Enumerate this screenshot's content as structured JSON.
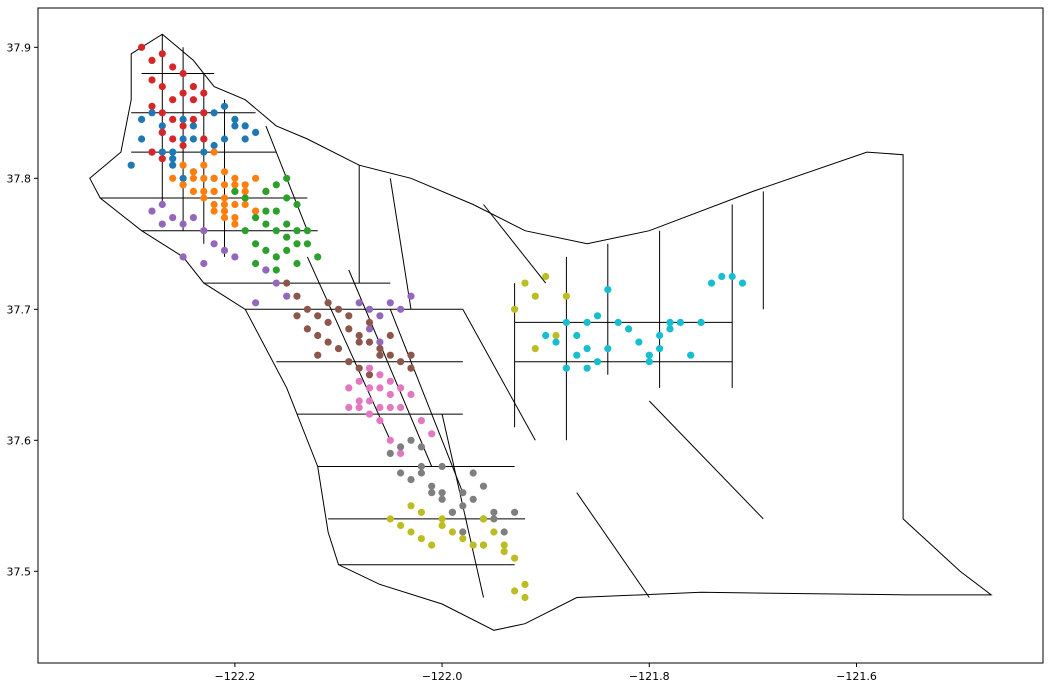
{
  "chart_data": {
    "type": "scatter",
    "title": "",
    "xlabel": "",
    "ylabel": "",
    "xlim": [
      -122.39,
      -121.42
    ],
    "ylim": [
      37.43,
      37.93
    ],
    "grid": false,
    "x_ticks": [
      {
        "value": -122.2,
        "label": "−122.2"
      },
      {
        "value": -122.0,
        "label": "−122.0"
      },
      {
        "value": -121.8,
        "label": "−121.8"
      },
      {
        "value": -121.6,
        "label": "−121.6"
      }
    ],
    "y_ticks": [
      {
        "value": 37.5,
        "label": "37.5"
      },
      {
        "value": 37.6,
        "label": "37.6"
      },
      {
        "value": 37.7,
        "label": "37.7"
      },
      {
        "value": 37.8,
        "label": "37.8"
      },
      {
        "value": 37.9,
        "label": "37.9"
      }
    ],
    "county_outline": [
      [
        -122.3,
        37.895
      ],
      [
        -122.27,
        37.91
      ],
      [
        -122.24,
        37.89
      ],
      [
        -122.22,
        37.87
      ],
      [
        -122.19,
        37.86
      ],
      [
        -122.16,
        37.84
      ],
      [
        -122.13,
        37.83
      ],
      [
        -122.08,
        37.81
      ],
      [
        -122.03,
        37.8
      ],
      [
        -121.97,
        37.78
      ],
      [
        -121.92,
        37.76
      ],
      [
        -121.86,
        37.75
      ],
      [
        -121.8,
        37.76
      ],
      [
        -121.7,
        37.79
      ],
      [
        -121.59,
        37.82
      ],
      [
        -121.555,
        37.818
      ],
      [
        -121.555,
        37.54
      ],
      [
        -121.5,
        37.5
      ],
      [
        -121.47,
        37.482
      ],
      [
        -121.55,
        37.482
      ],
      [
        -121.75,
        37.484
      ],
      [
        -121.87,
        37.48
      ],
      [
        -121.92,
        37.46
      ],
      [
        -121.95,
        37.455
      ],
      [
        -122.0,
        37.475
      ],
      [
        -122.06,
        37.49
      ],
      [
        -122.1,
        37.505
      ],
      [
        -122.11,
        37.53
      ],
      [
        -122.12,
        37.58
      ],
      [
        -122.15,
        37.64
      ],
      [
        -122.19,
        37.7
      ],
      [
        -122.23,
        37.72
      ],
      [
        -122.25,
        37.74
      ],
      [
        -122.29,
        37.76
      ],
      [
        -122.33,
        37.785
      ],
      [
        -122.34,
        37.8
      ],
      [
        -122.31,
        37.82
      ],
      [
        -122.3,
        37.86
      ],
      [
        -122.3,
        37.895
      ]
    ],
    "tract_boundaries": [
      [
        [
          -122.3,
          37.82
        ],
        [
          -122.16,
          37.82
        ]
      ],
      [
        [
          -122.3,
          37.85
        ],
        [
          -122.18,
          37.85
        ]
      ],
      [
        [
          -122.29,
          37.88
        ],
        [
          -122.22,
          37.88
        ]
      ],
      [
        [
          -122.27,
          37.91
        ],
        [
          -122.27,
          37.78
        ]
      ],
      [
        [
          -122.25,
          37.9
        ],
        [
          -122.25,
          37.76
        ]
      ],
      [
        [
          -122.23,
          37.88
        ],
        [
          -122.23,
          37.75
        ]
      ],
      [
        [
          -122.21,
          37.86
        ],
        [
          -122.21,
          37.74
        ]
      ],
      [
        [
          -122.33,
          37.785
        ],
        [
          -122.13,
          37.785
        ]
      ],
      [
        [
          -122.29,
          37.76
        ],
        [
          -122.12,
          37.76
        ]
      ],
      [
        [
          -122.23,
          37.72
        ],
        [
          -122.05,
          37.72
        ]
      ],
      [
        [
          -122.19,
          37.7
        ],
        [
          -121.98,
          37.7
        ]
      ],
      [
        [
          -122.16,
          37.66
        ],
        [
          -121.98,
          37.66
        ]
      ],
      [
        [
          -122.14,
          37.62
        ],
        [
          -121.98,
          37.62
        ]
      ],
      [
        [
          -122.12,
          37.58
        ],
        [
          -121.93,
          37.58
        ]
      ],
      [
        [
          -122.11,
          37.54
        ],
        [
          -121.92,
          37.54
        ]
      ],
      [
        [
          -122.1,
          37.505
        ],
        [
          -121.93,
          37.505
        ]
      ],
      [
        [
          -122.13,
          37.74
        ],
        [
          -122.05,
          37.6
        ]
      ],
      [
        [
          -122.09,
          37.73
        ],
        [
          -122.01,
          37.58
        ]
      ],
      [
        [
          -122.05,
          37.7
        ],
        [
          -121.98,
          37.56
        ]
      ],
      [
        [
          -122.0,
          37.62
        ],
        [
          -121.96,
          37.48
        ]
      ],
      [
        [
          -121.98,
          37.7
        ],
        [
          -121.91,
          37.6
        ]
      ],
      [
        [
          -121.93,
          37.72
        ],
        [
          -121.93,
          37.61
        ]
      ],
      [
        [
          -121.93,
          37.66
        ],
        [
          -121.72,
          37.66
        ]
      ],
      [
        [
          -121.93,
          37.69
        ],
        [
          -121.72,
          37.69
        ]
      ],
      [
        [
          -121.72,
          37.78
        ],
        [
          -121.72,
          37.64
        ]
      ],
      [
        [
          -121.84,
          37.75
        ],
        [
          -121.84,
          37.65
        ]
      ],
      [
        [
          -121.79,
          37.76
        ],
        [
          -121.79,
          37.64
        ]
      ],
      [
        [
          -121.88,
          37.74
        ],
        [
          -121.88,
          37.6
        ]
      ],
      [
        [
          -121.69,
          37.79
        ],
        [
          -121.69,
          37.7
        ]
      ],
      [
        [
          -121.8,
          37.63
        ],
        [
          -121.69,
          37.54
        ]
      ],
      [
        [
          -121.87,
          37.56
        ],
        [
          -121.8,
          37.48
        ]
      ],
      [
        [
          -121.96,
          37.78
        ],
        [
          -121.9,
          37.72
        ]
      ],
      [
        [
          -122.05,
          37.8
        ],
        [
          -122.03,
          37.7
        ]
      ],
      [
        [
          -122.08,
          37.81
        ],
        [
          -122.08,
          37.72
        ]
      ],
      [
        [
          -122.17,
          37.84
        ],
        [
          -122.13,
          37.76
        ]
      ]
    ],
    "series": [
      {
        "color": "#1f77b4",
        "x": [
          -122.3,
          -122.29,
          -122.28,
          -122.27,
          -122.26,
          -122.25,
          -122.24,
          -122.23,
          -122.22,
          -122.21,
          -122.2,
          -122.19,
          -122.18,
          -122.27,
          -122.25,
          -122.23,
          -122.26,
          -122.24,
          -122.28,
          -122.22,
          -122.25,
          -122.27,
          -122.21,
          -122.23,
          -122.19,
          -122.26,
          -122.24,
          -122.29,
          -122.22,
          -122.2,
          -122.25
        ],
        "y": [
          37.81,
          37.83,
          37.85,
          37.84,
          37.82,
          37.83,
          37.84,
          37.85,
          37.85,
          37.83,
          37.84,
          37.83,
          37.835,
          37.82,
          37.8,
          37.82,
          37.81,
          37.83,
          37.82,
          37.8,
          37.845,
          37.835,
          37.855,
          37.83,
          37.84,
          37.815,
          37.805,
          37.845,
          37.825,
          37.845,
          37.795
        ]
      },
      {
        "color": "#ff7f0e",
        "x": [
          -122.26,
          -122.25,
          -122.24,
          -122.23,
          -122.22,
          -122.21,
          -122.2,
          -122.19,
          -122.18,
          -122.17,
          -122.22,
          -122.21,
          -122.2,
          -122.23,
          -122.24,
          -122.19,
          -122.22,
          -122.21,
          -122.2,
          -122.18,
          -122.25,
          -122.23,
          -122.22,
          -122.21,
          -122.2,
          -122.19,
          -122.24,
          -122.22,
          -122.21,
          -122.2,
          -122.19,
          -122.23,
          -122.22,
          -122.18,
          -122.21,
          -122.2
        ],
        "y": [
          37.8,
          37.795,
          37.8,
          37.8,
          37.79,
          37.78,
          37.795,
          37.78,
          37.8,
          37.79,
          37.78,
          37.77,
          37.78,
          37.79,
          37.805,
          37.795,
          37.775,
          37.785,
          37.79,
          37.775,
          37.81,
          37.785,
          37.8,
          37.795,
          37.77,
          37.785,
          37.79,
          37.79,
          37.775,
          37.765,
          37.79,
          37.81,
          37.82,
          37.775,
          37.805,
          37.8
        ]
      },
      {
        "color": "#2ca02c",
        "x": [
          -122.17,
          -122.16,
          -122.15,
          -122.14,
          -122.13,
          -122.18,
          -122.17,
          -122.16,
          -122.15,
          -122.14,
          -122.19,
          -122.18,
          -122.17,
          -122.16,
          -122.15,
          -122.14,
          -122.13,
          -122.16,
          -122.18,
          -122.17,
          -122.15,
          -122.14,
          -122.12,
          -122.17,
          -122.16,
          -122.15,
          -122.19,
          -122.2
        ],
        "y": [
          37.79,
          37.795,
          37.8,
          37.78,
          37.76,
          37.77,
          37.765,
          37.76,
          37.755,
          37.75,
          37.76,
          37.75,
          37.745,
          37.74,
          37.745,
          37.735,
          37.75,
          37.73,
          37.735,
          37.73,
          37.765,
          37.76,
          37.74,
          37.775,
          37.775,
          37.785,
          37.785,
          37.79
        ]
      },
      {
        "color": "#d62728",
        "x": [
          -122.29,
          -122.28,
          -122.27,
          -122.26,
          -122.25,
          -122.24,
          -122.23,
          -122.28,
          -122.27,
          -122.26,
          -122.25,
          -122.24,
          -122.28,
          -122.27,
          -122.26,
          -122.25,
          -122.24,
          -122.23,
          -122.27,
          -122.26,
          -122.25,
          -122.28,
          -122.23,
          -122.27
        ],
        "y": [
          37.9,
          37.89,
          37.895,
          37.885,
          37.88,
          37.87,
          37.865,
          37.875,
          37.87,
          37.86,
          37.865,
          37.86,
          37.855,
          37.85,
          37.845,
          37.84,
          37.845,
          37.85,
          37.835,
          37.83,
          37.825,
          37.82,
          37.83,
          37.815
        ]
      },
      {
        "color": "#9467bd",
        "x": [
          -122.28,
          -122.27,
          -122.26,
          -122.25,
          -122.24,
          -122.23,
          -122.22,
          -122.21,
          -122.27,
          -122.25,
          -122.23,
          -122.17,
          -122.16,
          -122.15,
          -122.08,
          -122.07,
          -122.06,
          -122.05,
          -122.04,
          -122.03,
          -122.07,
          -122.06,
          -122.18,
          -122.2
        ],
        "y": [
          37.775,
          37.78,
          37.77,
          37.765,
          37.77,
          37.76,
          37.75,
          37.745,
          37.765,
          37.74,
          37.735,
          37.73,
          37.72,
          37.71,
          37.705,
          37.7,
          37.695,
          37.705,
          37.7,
          37.71,
          37.685,
          37.675,
          37.705,
          37.74
        ]
      },
      {
        "color": "#8c564b",
        "x": [
          -122.15,
          -122.14,
          -122.13,
          -122.12,
          -122.11,
          -122.1,
          -122.09,
          -122.08,
          -122.07,
          -122.06,
          -122.05,
          -122.04,
          -122.03,
          -122.12,
          -122.11,
          -122.1,
          -122.09,
          -122.08,
          -122.07,
          -122.06,
          -122.05,
          -122.14,
          -122.13,
          -122.11,
          -122.09,
          -122.07,
          -122.08,
          -122.12,
          -122.03
        ],
        "y": [
          37.72,
          37.71,
          37.7,
          37.695,
          37.69,
          37.7,
          37.685,
          37.68,
          37.675,
          37.67,
          37.665,
          37.66,
          37.655,
          37.68,
          37.675,
          37.67,
          37.66,
          37.655,
          37.65,
          37.665,
          37.68,
          37.695,
          37.685,
          37.705,
          37.695,
          37.69,
          37.675,
          37.665,
          37.665
        ]
      },
      {
        "color": "#e377c2",
        "x": [
          -122.09,
          -122.08,
          -122.07,
          -122.06,
          -122.05,
          -122.08,
          -122.07,
          -122.06,
          -122.05,
          -122.04,
          -122.03,
          -122.08,
          -122.07,
          -122.06,
          -122.05,
          -122.04,
          -122.02,
          -122.01,
          -122.05,
          -122.04,
          -122.07,
          -122.06,
          -122.09
        ],
        "y": [
          37.64,
          37.645,
          37.63,
          37.64,
          37.625,
          37.625,
          37.62,
          37.615,
          37.635,
          37.64,
          37.635,
          37.63,
          37.655,
          37.65,
          37.645,
          37.625,
          37.615,
          37.605,
          37.6,
          37.59,
          37.64,
          37.625,
          37.625
        ]
      },
      {
        "color": "#7f7f7f",
        "x": [
          -122.05,
          -122.04,
          -122.03,
          -122.02,
          -122.01,
          -122.0,
          -121.99,
          -121.98,
          -121.97,
          -121.96,
          -121.95,
          -121.94,
          -122.03,
          -122.02,
          -122.01,
          -122.0,
          -121.99,
          -121.98,
          -121.97,
          -121.96,
          -122.04,
          -122.02,
          -122.0,
          -121.98,
          -121.96,
          -121.95,
          -121.93
        ],
        "y": [
          37.59,
          37.595,
          37.6,
          37.58,
          37.565,
          37.56,
          37.545,
          37.55,
          37.555,
          37.54,
          37.545,
          37.53,
          37.57,
          37.575,
          37.56,
          37.555,
          37.545,
          37.56,
          37.575,
          37.565,
          37.575,
          37.595,
          37.58,
          37.53,
          37.52,
          37.54,
          37.545
        ]
      },
      {
        "color": "#bcbd22",
        "x": [
          -122.05,
          -122.04,
          -122.03,
          -122.02,
          -122.01,
          -122.0,
          -121.99,
          -121.98,
          -121.97,
          -121.96,
          -121.95,
          -121.94,
          -121.93,
          -121.92,
          -122.03,
          -122.02,
          -122.0,
          -121.96,
          -121.94,
          -121.93,
          -121.92,
          -121.91,
          -121.89,
          -121.93,
          -121.92,
          -121.91,
          -121.9,
          -121.88
        ],
        "y": [
          37.54,
          37.535,
          37.53,
          37.545,
          37.52,
          37.535,
          37.53,
          37.525,
          37.52,
          37.54,
          37.53,
          37.52,
          37.51,
          37.49,
          37.55,
          37.525,
          37.54,
          37.52,
          37.515,
          37.485,
          37.48,
          37.67,
          37.68,
          37.7,
          37.72,
          37.71,
          37.725,
          37.71
        ]
      },
      {
        "color": "#17becf",
        "x": [
          -121.9,
          -121.89,
          -121.88,
          -121.87,
          -121.86,
          -121.85,
          -121.84,
          -121.88,
          -121.87,
          -121.86,
          -121.85,
          -121.83,
          -121.82,
          -121.81,
          -121.8,
          -121.79,
          -121.78,
          -121.77,
          -121.76,
          -121.75,
          -121.74,
          -121.73,
          -121.72,
          -121.71,
          -121.8,
          -121.79,
          -121.78,
          -121.84,
          -121.86
        ],
        "y": [
          37.68,
          37.675,
          37.69,
          37.665,
          37.655,
          37.66,
          37.67,
          37.655,
          37.68,
          37.69,
          37.695,
          37.69,
          37.685,
          37.675,
          37.665,
          37.67,
          37.685,
          37.69,
          37.665,
          37.69,
          37.72,
          37.725,
          37.725,
          37.72,
          37.66,
          37.68,
          37.69,
          37.715,
          37.67
        ]
      }
    ]
  }
}
